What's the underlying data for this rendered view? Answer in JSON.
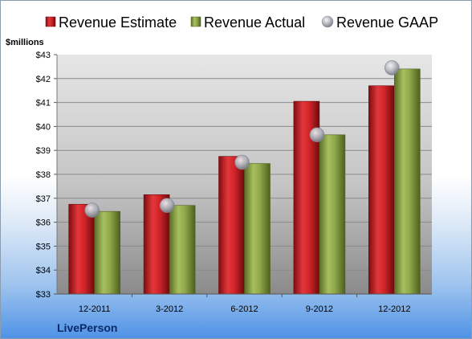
{
  "chart_data": {
    "type": "bar",
    "unit_label": "$millions",
    "company": "LivePerson",
    "categories": [
      "12-2011",
      "3-2012",
      "6-2012",
      "9-2012",
      "12-2012"
    ],
    "series": [
      {
        "name": "Revenue Estimate",
        "type": "bar",
        "color": "#cc1f25",
        "values": [
          36.75,
          37.15,
          38.75,
          41.05,
          41.7
        ]
      },
      {
        "name": "Revenue Actual",
        "type": "bar",
        "color": "#8fa84a",
        "values": [
          36.45,
          36.7,
          38.45,
          39.65,
          42.4
        ]
      },
      {
        "name": "Revenue GAAP",
        "type": "scatter",
        "color": "#b8bcc4",
        "values": [
          36.5,
          36.7,
          38.5,
          39.65,
          42.45
        ]
      }
    ],
    "ylim": [
      33,
      43
    ],
    "yticks": [
      33,
      34,
      35,
      36,
      37,
      38,
      39,
      40,
      41,
      42,
      43
    ],
    "ytick_labels": [
      "$33",
      "$34",
      "$35",
      "$36",
      "$37",
      "$38",
      "$39",
      "$40",
      "$41",
      "$42",
      "$43"
    ],
    "grid": true,
    "legend": "top"
  }
}
